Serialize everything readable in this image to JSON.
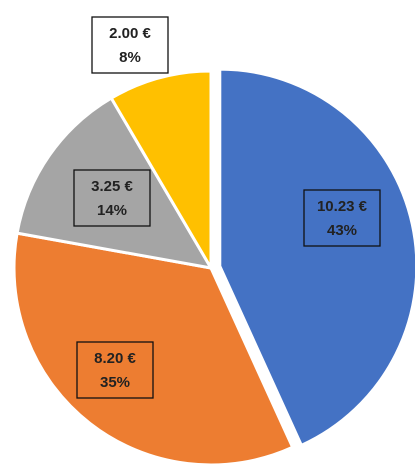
{
  "chart_data": {
    "type": "pie",
    "categories": [
      null,
      null,
      null,
      null
    ],
    "values": [
      10.23,
      8.2,
      3.25,
      2.0
    ],
    "value_labels": [
      "10.23 €",
      "8.20 €",
      "3.25 €",
      "2.00 €"
    ],
    "percent_labels": [
      "43%",
      "35%",
      "14%",
      "8%"
    ],
    "colors": [
      "#4472c4",
      "#ed7d31",
      "#a5a5a5",
      "#ffc000"
    ]
  }
}
